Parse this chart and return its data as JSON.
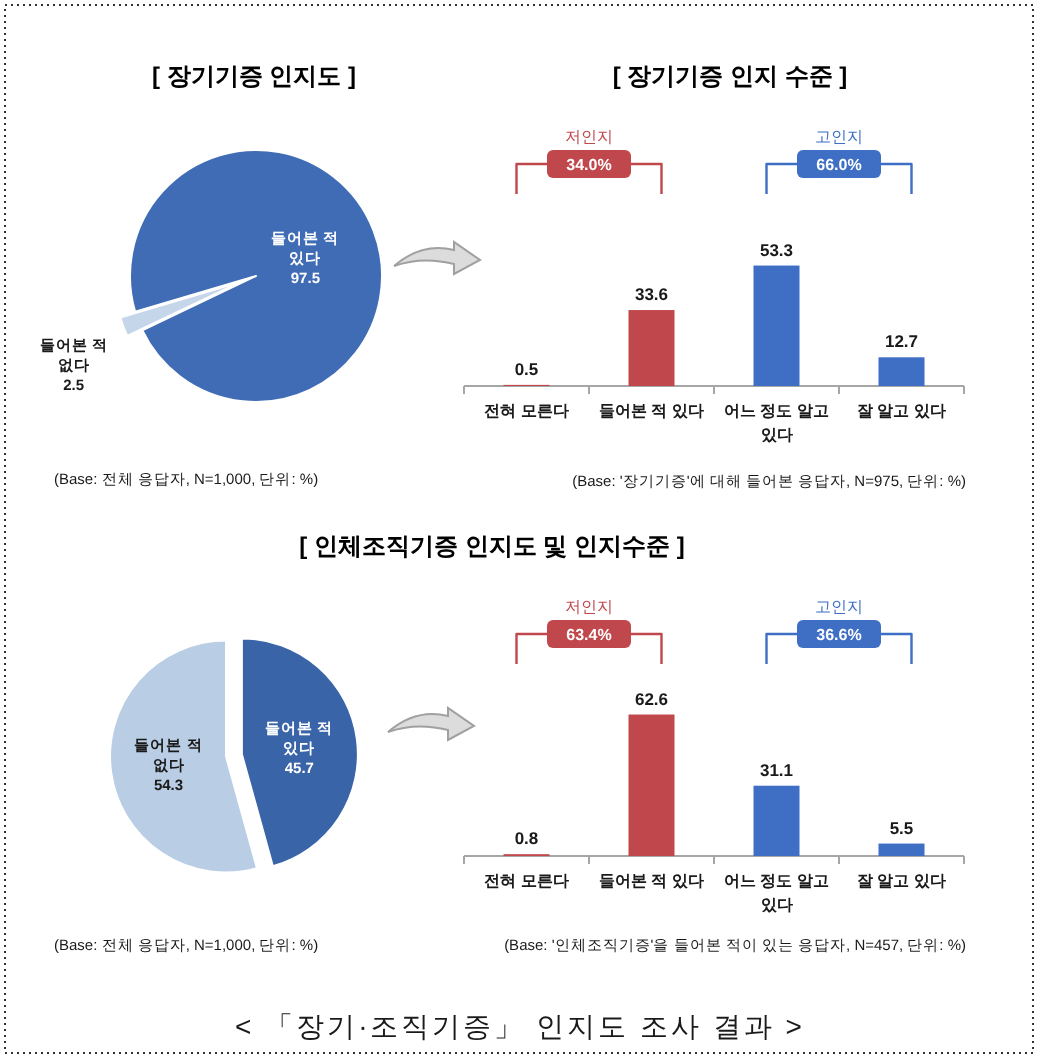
{
  "chart_data": [
    {
      "type": "pie",
      "title": "[ 장기기증 인지도 ]",
      "categories": [
        "들어본 적 있다",
        "들어본 적 없다"
      ],
      "values": [
        97.5,
        2.5
      ],
      "colors": [
        "#3f6cb4",
        "#c6d6ea"
      ],
      "data_labels": true,
      "annotations": [
        "(Base: 전체 응답자, N=1,000, 단위: %)"
      ]
    },
    {
      "type": "bar",
      "title": "[ 장기기증 인지 수준 ]",
      "categories": [
        "전혀 모른다",
        "들어본 적 있다",
        "어느 정도 알고 있다",
        "잘 알고 있다"
      ],
      "values": [
        0.5,
        33.6,
        53.3,
        12.7
      ],
      "colors": [
        "#c0474c",
        "#c0474c",
        "#3e6fc5",
        "#3e6fc5"
      ],
      "data_labels": true,
      "annotations": [
        "저인지",
        "34.0%",
        "고인지",
        "66.0%",
        "(Base: '장기기증'에 대해 들어본 응답자, N=975, 단위: %)"
      ]
    },
    {
      "type": "pie",
      "title": "[ 인체조직기증 인지도 및 인지수준 ]",
      "categories": [
        "들어본 적 있다",
        "들어본 적 없다"
      ],
      "values": [
        45.7,
        54.3
      ],
      "colors": [
        "#3a64a8",
        "#b9cde5"
      ],
      "data_labels": true,
      "annotations": [
        "(Base: 전체 응답자, N=1,000, 단위: %)"
      ]
    },
    {
      "type": "bar",
      "categories": [
        "전혀 모른다",
        "들어본 적 있다",
        "어느 정도 알고 있다",
        "잘 알고 있다"
      ],
      "values": [
        0.8,
        62.6,
        31.1,
        5.5
      ],
      "colors": [
        "#c0474c",
        "#c0474c",
        "#3e6fc5",
        "#3e6fc5"
      ],
      "data_labels": true,
      "annotations": [
        "저인지",
        "63.4%",
        "고인지",
        "36.6%",
        "(Base: '인체조직기증'을 들어본 적이 있는 응답자, N=457, 단위: %)",
        "< 「장기·조직기증」 인지도 조사 결과 >"
      ]
    }
  ]
}
